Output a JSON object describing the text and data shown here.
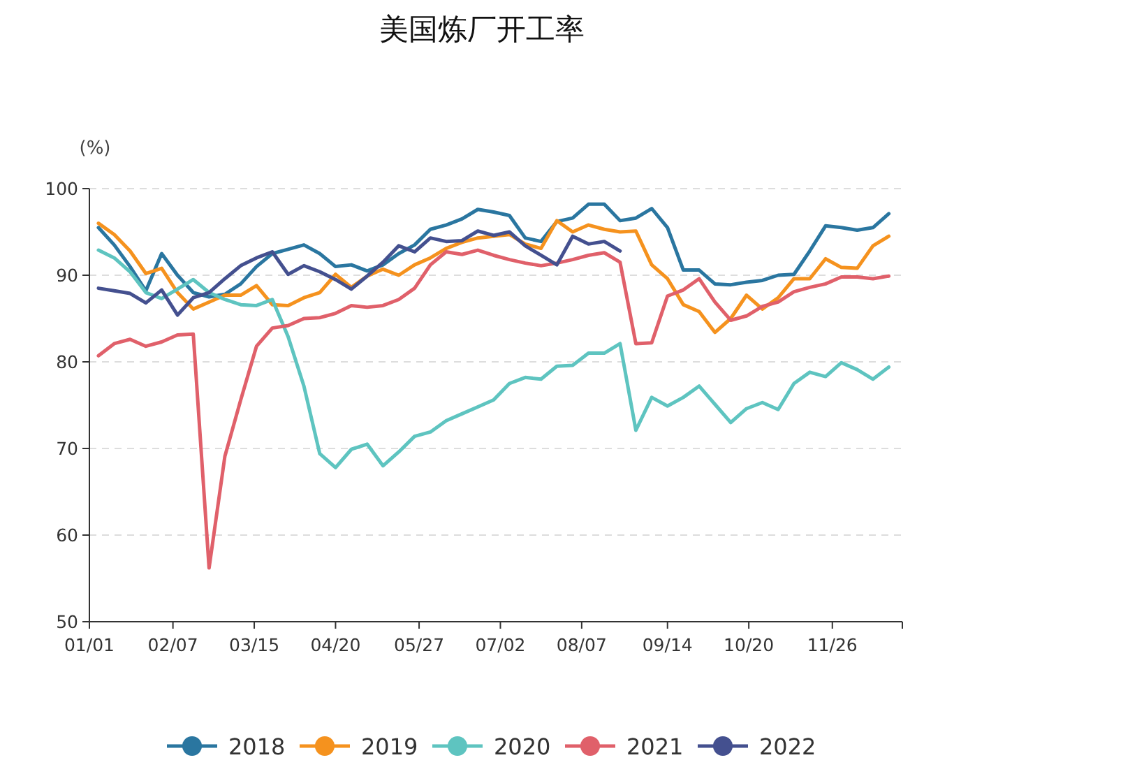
{
  "chart_data": {
    "type": "line",
    "title": "美国炼厂开工率",
    "ylabel": "(%)",
    "x": [
      "--01-05",
      "--01-12",
      "--01-19",
      "--01-26",
      "--02-02",
      "--02-09",
      "--02-16",
      "--02-23",
      "--03-02",
      "--03-09",
      "--03-16",
      "--03-23",
      "--03-30",
      "--04-06",
      "--04-13",
      "--04-20",
      "--04-27",
      "--05-04",
      "--05-11",
      "--05-18",
      "--05-25",
      "--06-01",
      "--06-08",
      "--06-15",
      "--06-22",
      "--06-29",
      "--07-06",
      "--07-13",
      "--07-20",
      "--07-27",
      "--08-03",
      "--08-10",
      "--08-17",
      "--08-24",
      "--08-31",
      "--09-07",
      "--09-14",
      "--09-21",
      "--09-28",
      "--10-05",
      "--10-12",
      "--10-19",
      "--10-26",
      "--11-02",
      "--11-09",
      "--11-16",
      "--11-23",
      "--11-30",
      "--12-07",
      "--12-14",
      "--12-21"
    ],
    "xlim": [
      "--01-01",
      "--12-27"
    ],
    "xticks": [
      {
        "value": "--01-01",
        "label": "01/01"
      },
      {
        "value": "--02-07",
        "label": "02/07"
      },
      {
        "value": "--03-15",
        "label": "03/15"
      },
      {
        "value": "--04-20",
        "label": "04/20"
      },
      {
        "value": "--05-27",
        "label": "05/27"
      },
      {
        "value": "--07-02",
        "label": "07/02"
      },
      {
        "value": "--08-07",
        "label": "08/07"
      },
      {
        "value": "--09-14",
        "label": "09/14"
      },
      {
        "value": "--10-20",
        "label": "10/20"
      },
      {
        "value": "--11-26",
        "label": "11/26"
      },
      {
        "value": "--12-27",
        "label": null
      }
    ],
    "ylim": [
      50,
      100
    ],
    "yticks": [
      50,
      60,
      70,
      80,
      90,
      100
    ],
    "grid": "y",
    "legend": "bottom",
    "series": [
      {
        "name": "2018",
        "color": "#2a76a0",
        "values": [
          95.5,
          93.5,
          91,
          88.2,
          92.5,
          90,
          88,
          87.5,
          87.8,
          89,
          91,
          92.5,
          93,
          93.5,
          92.5,
          91,
          91.2,
          90.5,
          91.2,
          92.5,
          93.5,
          95.3,
          95.8,
          96.5,
          97.6,
          97.3,
          96.9,
          94.3,
          93.9,
          96.2,
          96.6,
          98.2,
          98.2,
          96.3,
          96.6,
          97.7,
          95.5,
          90.6,
          90.6,
          89,
          88.9,
          89.2,
          89.4,
          90,
          90.1,
          92.8,
          95.7,
          95.5,
          95.2,
          95.5,
          97.1
        ]
      },
      {
        "name": "2019",
        "color": "#f5921e",
        "values": [
          96,
          94.7,
          92.8,
          90.2,
          90.8,
          88,
          86.1,
          86.9,
          87.7,
          87.7,
          88.8,
          86.6,
          86.5,
          87.4,
          88,
          90.1,
          88.6,
          89.9,
          90.7,
          90,
          91.2,
          92,
          93.1,
          93.8,
          94.3,
          94.5,
          94.7,
          93.6,
          93.1,
          96.3,
          95,
          95.8,
          95.3,
          95,
          95.1,
          91.2,
          89.6,
          86.6,
          85.8,
          83.4,
          85,
          87.7,
          86.1,
          87.4,
          89.6,
          89.6,
          91.9,
          90.9,
          90.8,
          93.4,
          94.5
        ]
      },
      {
        "name": "2020",
        "color": "#5ec4c0",
        "values": [
          92.9,
          92,
          90.4,
          88,
          87.3,
          88.4,
          89.5,
          88,
          87.2,
          86.6,
          86.5,
          87.2,
          82.9,
          77.2,
          69.4,
          67.8,
          69.9,
          70.5,
          68,
          69.6,
          71.4,
          71.9,
          73.2,
          74,
          74.8,
          75.6,
          77.5,
          78.2,
          78,
          79.5,
          79.6,
          81,
          81,
          82.1,
          72.1,
          75.9,
          74.9,
          75.9,
          77.2,
          75.1,
          73,
          74.6,
          75.3,
          74.5,
          77.5,
          78.8,
          78.3,
          79.9,
          79.1,
          78,
          79.4
        ]
      },
      {
        "name": "2021",
        "color": "#e0606a",
        "values": [
          80.7,
          82.1,
          82.6,
          81.8,
          82.3,
          83.1,
          83.2,
          56.2,
          69.1,
          75.6,
          81.8,
          83.9,
          84.2,
          85,
          85.1,
          85.6,
          86.5,
          86.3,
          86.5,
          87.2,
          88.5,
          91.2,
          92.7,
          92.4,
          92.9,
          92.3,
          91.8,
          91.4,
          91.1,
          91.4,
          91.8,
          92.3,
          92.6,
          91.5,
          82.1,
          82.2,
          87.6,
          88.3,
          89.6,
          86.9,
          84.8,
          85.3,
          86.4,
          86.9,
          88.1,
          88.6,
          89,
          89.8,
          89.8,
          89.6,
          89.9
        ]
      },
      {
        "name": "2022",
        "color": "#44508f",
        "values": [
          88.5,
          88.2,
          87.9,
          86.8,
          88.3,
          85.4,
          87.4,
          88,
          89.6,
          91.1,
          92,
          92.7,
          90.1,
          91.1,
          90.4,
          89.5,
          88.4,
          89.9,
          91.5,
          93.4,
          92.7,
          94.3,
          93.9,
          94,
          95.1,
          94.6,
          95,
          93.4,
          92.3,
          91.2,
          94.5,
          93.6,
          93.9,
          92.8,
          null,
          null,
          null,
          null,
          null,
          null,
          null,
          null,
          null,
          null,
          null,
          null,
          null,
          null,
          null,
          null,
          null
        ]
      }
    ]
  }
}
